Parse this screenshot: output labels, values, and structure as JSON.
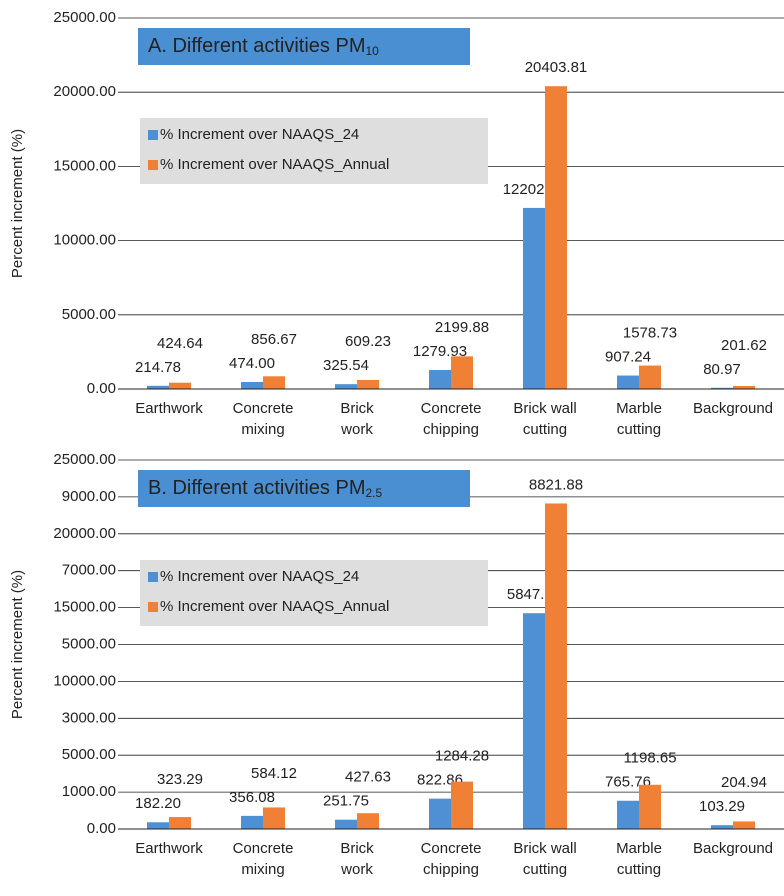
{
  "chart_data": [
    {
      "type": "bar",
      "title": "A. Different activities PM",
      "title_subscript": "10",
      "y_label": "Percent increment (%)",
      "categories": [
        [
          "Earthwork"
        ],
        [
          "Concrete",
          "mixing"
        ],
        [
          "Brick",
          "work"
        ],
        [
          "Concrete",
          "chipping"
        ],
        [
          "Brick wall",
          "cutting"
        ],
        [
          "Marble",
          "cutting"
        ],
        [
          "Background"
        ]
      ],
      "series": [
        {
          "name": "% Increment over NAAQS_24",
          "color": "#4f90d4",
          "values": [
            214.78,
            474.0,
            325.54,
            1279.93,
            12202.28,
            907.24,
            80.97
          ],
          "value_labels": [
            "214.78",
            "474.00",
            "325.54",
            "1279.93",
            "12202.28",
            "907.24",
            "80.97"
          ]
        },
        {
          "name": "% Increment over NAAQS_Annual",
          "color": "#ef8035",
          "values": [
            424.64,
            856.67,
            609.23,
            2199.88,
            20403.81,
            1578.73,
            201.62
          ],
          "value_labels": [
            "424.64",
            "856.67",
            "609.23",
            "2199.88",
            "20403.81",
            "1578.73",
            "201.62"
          ]
        }
      ],
      "ylim": [
        0,
        25000
      ],
      "yticks": [
        {
          "value": 0,
          "label": "0.00"
        },
        {
          "value": 5000,
          "label": "5000.00"
        },
        {
          "value": 10000,
          "label": "10000.00"
        },
        {
          "value": 15000,
          "label": "15000.00"
        },
        {
          "value": 20000,
          "label": "20000.00"
        },
        {
          "value": 25000,
          "label": "25000.00"
        }
      ],
      "grid": true,
      "legend": "upper left"
    },
    {
      "type": "bar",
      "title": "B. Different activities PM",
      "title_subscript": "2.5",
      "y_label": "Percent increment (%)",
      "categories": [
        [
          "Earthwork"
        ],
        [
          "Concrete",
          "mixing"
        ],
        [
          "Brick",
          "work"
        ],
        [
          "Concrete",
          "chipping"
        ],
        [
          "Brick wall",
          "cutting"
        ],
        [
          "Marble",
          "cutting"
        ],
        [
          "Background"
        ]
      ],
      "series": [
        {
          "name": "% Increment over NAAQS_24",
          "color": "#4f90d4",
          "axis": "y2",
          "values": [
            182.2,
            356.08,
            251.75,
            822.86,
            5847.92,
            765.76,
            103.29
          ],
          "value_labels": [
            "182.20",
            "356.08",
            "251.75",
            "822.86",
            "5847.92",
            "765.76",
            "103.29"
          ]
        },
        {
          "name": "% Increment over NAAQS_Annual",
          "color": "#ef8035",
          "axis": "y2",
          "values": [
            323.29,
            584.12,
            427.63,
            1284.28,
            8821.88,
            1198.65,
            204.94
          ],
          "value_labels": [
            "323.29",
            "584.12",
            "427.63",
            "1284.28",
            "8821.88",
            "1198.65",
            "204.94"
          ]
        }
      ],
      "ylim": [
        0,
        25000
      ],
      "yticks": [
        {
          "value": 0,
          "label": "0.00"
        },
        {
          "value": 5000,
          "label": "5000.00"
        },
        {
          "value": 10000,
          "label": "10000.00"
        },
        {
          "value": 15000,
          "label": "15000.00"
        },
        {
          "value": 20000,
          "label": "20000.00"
        },
        {
          "value": 25000,
          "label": "25000.00"
        }
      ],
      "y2lim": [
        0,
        10000
      ],
      "y2ticks": [
        {
          "value": 1000,
          "label": "1000.00"
        },
        {
          "value": 3000,
          "label": "3000.00"
        },
        {
          "value": 5000,
          "label": "5000.00"
        },
        {
          "value": 7000,
          "label": "7000.00"
        },
        {
          "value": 9000,
          "label": "9000.00"
        }
      ],
      "grid": true,
      "legend": "upper left"
    }
  ]
}
